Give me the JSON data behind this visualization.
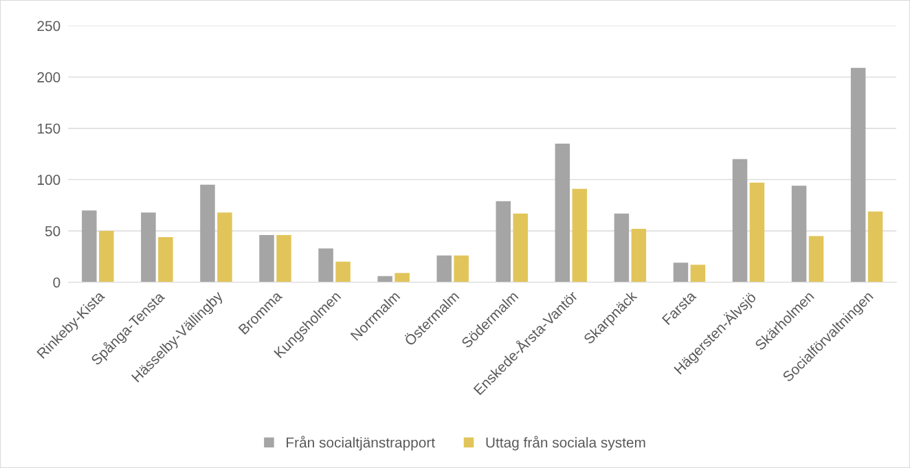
{
  "chart_data": {
    "type": "bar",
    "categories": [
      "Rinkeby-Kista",
      "Spånga-Tensta",
      "Hässelby-Vällingby",
      "Bromma",
      "Kungsholmen",
      "Norrmalm",
      "Östermalm",
      "Södermalm",
      "Enskede-Årsta-Vantör",
      "Skarpnäck",
      "Farsta",
      "Hägersten-Älvsjö",
      "Skärholmen",
      "Socialförvaltningen"
    ],
    "series": [
      {
        "name": "Från socialtjänstrapport",
        "color": "#a5a5a5",
        "values": [
          70,
          68,
          95,
          46,
          33,
          6,
          26,
          79,
          135,
          67,
          19,
          120,
          94,
          209
        ]
      },
      {
        "name": "Uttag från sociala system",
        "color": "#e2c55a",
        "values": [
          50,
          44,
          68,
          46,
          20,
          9,
          26,
          67,
          91,
          52,
          17,
          97,
          45,
          69
        ]
      }
    ],
    "ylim": [
      0,
      250
    ],
    "yticks": [
      0,
      50,
      100,
      150,
      200,
      250
    ],
    "grid": "y",
    "legend": "bottom"
  }
}
